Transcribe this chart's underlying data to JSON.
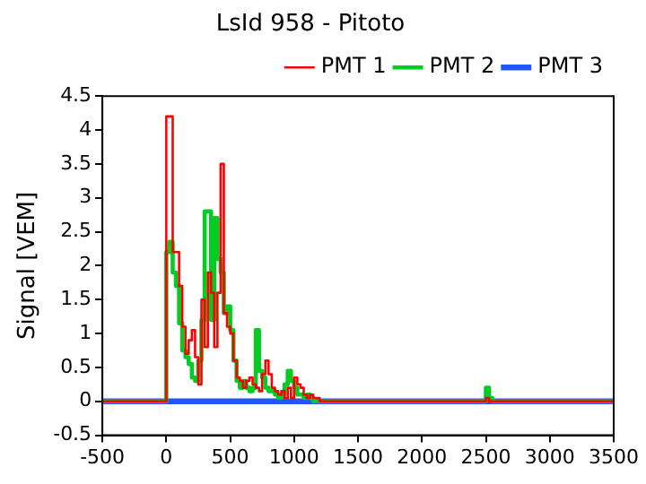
{
  "chart_data": {
    "type": "step",
    "title": "LsId 958 - Pitoto",
    "ylabel": "Signal [VEM]",
    "x": [
      -500,
      0,
      25,
      50,
      75,
      100,
      125,
      150,
      175,
      200,
      225,
      250,
      275,
      300,
      325,
      350,
      375,
      400,
      425,
      450,
      475,
      500,
      525,
      550,
      575,
      600,
      625,
      650,
      675,
      700,
      725,
      750,
      775,
      800,
      825,
      850,
      875,
      900,
      925,
      950,
      975,
      1000,
      1025,
      1050,
      1075,
      1100,
      1125,
      1150,
      1175,
      1200,
      2475,
      2500,
      2525,
      2550,
      3500
    ],
    "series": [
      {
        "name": "PMT 1",
        "color": "#ff0000",
        "values": [
          0,
          4.2,
          4.2,
          2.2,
          2.2,
          1.7,
          1.1,
          0.7,
          0.9,
          1.05,
          0.65,
          0.25,
          1.5,
          0.8,
          1.9,
          1.6,
          0.8,
          1.6,
          3.5,
          1.3,
          1.1,
          1.0,
          0.6,
          0.35,
          0.3,
          0.2,
          0.3,
          0.35,
          0.25,
          0.2,
          0.15,
          0.4,
          0.6,
          0.4,
          0.2,
          0.15,
          0.1,
          0.15,
          0.05,
          0.2,
          0.05,
          0.35,
          0.25,
          0.2,
          0.1,
          0.05,
          0.1,
          0.05,
          0.05,
          0,
          0,
          0.05,
          0,
          0,
          0
        ]
      },
      {
        "name": "PMT 2",
        "color": "#00cc22",
        "values": [
          0,
          2.2,
          2.35,
          1.9,
          1.7,
          1.15,
          0.75,
          0.65,
          0.55,
          0.35,
          0.3,
          0.6,
          1.2,
          2.8,
          2.8,
          1.2,
          2.7,
          2.1,
          1.9,
          1.3,
          1.4,
          1.05,
          0.6,
          0.3,
          0.2,
          0.3,
          0.2,
          0.15,
          0.2,
          1.05,
          0.45,
          0.35,
          0.2,
          0.15,
          0.15,
          0.1,
          0.05,
          0.1,
          0.25,
          0.45,
          0.3,
          0.2,
          0.1,
          0.1,
          0.05,
          0.1,
          0.05,
          0,
          0,
          0,
          0,
          0.2,
          0.05,
          0,
          0
        ]
      },
      {
        "name": "PMT 3",
        "color": "#2255ff",
        "values": [
          0,
          0,
          0,
          0,
          0,
          0,
          0,
          0,
          0,
          0,
          0,
          0,
          0,
          0,
          0,
          0,
          0,
          0,
          0,
          0,
          0,
          0,
          0,
          0,
          0,
          0,
          0,
          0,
          0,
          0,
          0,
          0,
          0,
          0,
          0,
          0,
          0,
          0,
          0,
          0,
          0,
          0,
          0,
          0,
          0,
          0,
          0,
          0,
          0,
          0,
          0,
          0,
          0,
          0,
          0
        ]
      }
    ],
    "xlim": [
      -500,
      3500
    ],
    "xticks": [
      -500,
      0,
      500,
      1000,
      1500,
      2000,
      2500,
      3000,
      3500
    ],
    "ylim": [
      -0.5,
      4.5
    ],
    "yticks": [
      -0.5,
      0,
      0.5,
      1,
      1.5,
      2,
      2.5,
      3,
      3.5,
      4,
      4.5
    ],
    "legend": "top right"
  }
}
